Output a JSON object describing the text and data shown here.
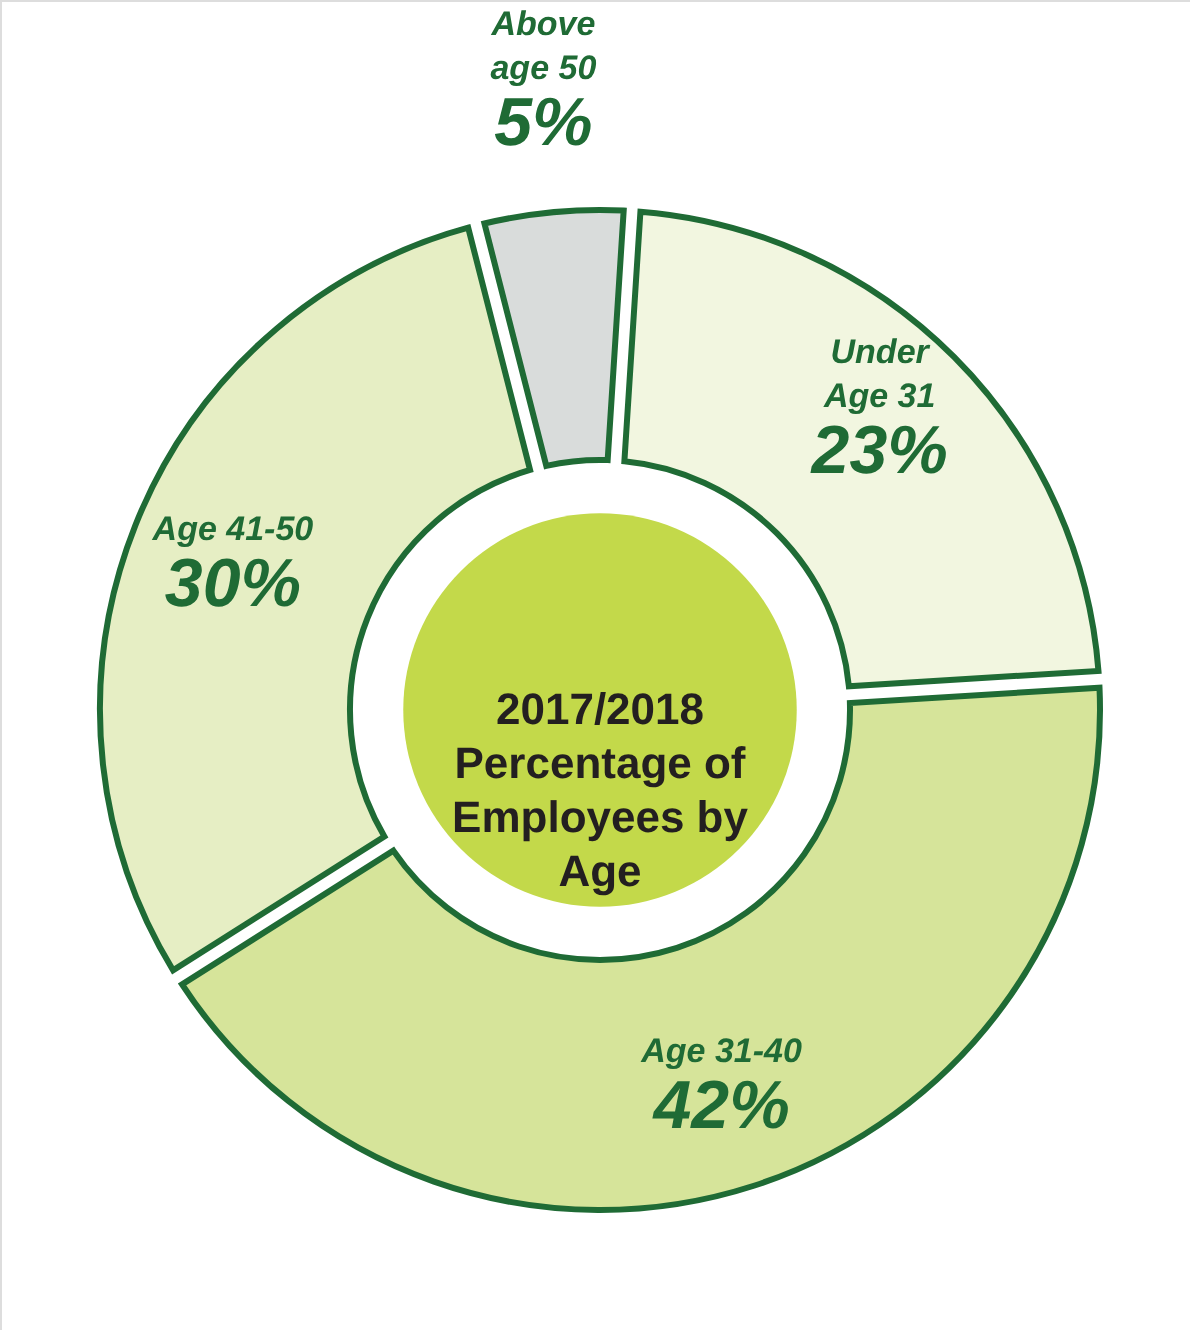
{
  "chart_data": {
    "type": "donut",
    "title": "2017/2018 Percentage of Employees by Age",
    "categories": [
      "Above age 50",
      "Under Age 31",
      "Age 31-40",
      "Age 41-50"
    ],
    "values": [
      5,
      23,
      42,
      30
    ],
    "value_labels": [
      "5%",
      "23%",
      "42%",
      "30%"
    ],
    "colors": [
      "#d9dcdb",
      "#f2f6e0",
      "#d6e49a",
      "#e6eec4"
    ]
  }
}
